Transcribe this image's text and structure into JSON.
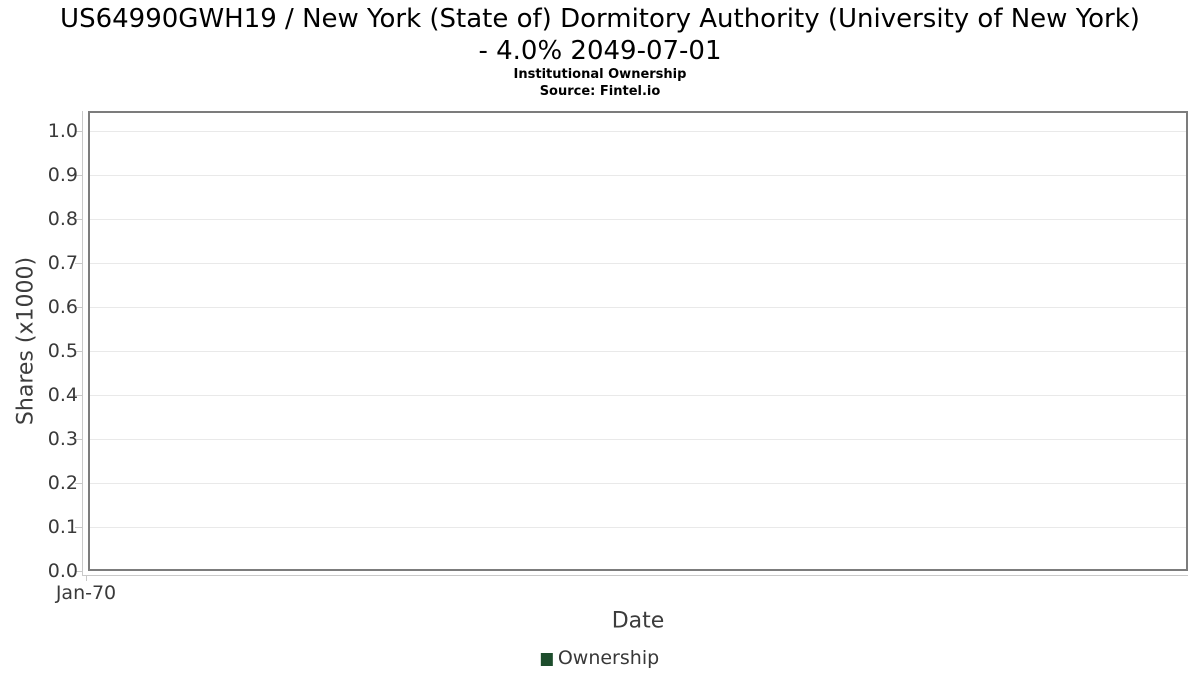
{
  "page": {
    "background": "#ffffff"
  },
  "chart": {
    "title_line1": "US64990GWH19 / New York (State of) Dormitory Authority (University of New York)",
    "title_line2": "- 4.0% 2049-07-01",
    "subtitle": "Institutional Ownership",
    "source": "Source: Fintel.io",
    "y_axis_title": "Shares (x1000)",
    "x_axis_title": "Date",
    "legend": {
      "label": "Ownership",
      "swatch_color": "#1d4d2c"
    },
    "colors": {
      "title_text": "#000000",
      "axis_text": "#3a3a3a",
      "grid_line": "#e9e9e9",
      "plot_border": "#7c7c7c",
      "axis_line": "#c9c9c9"
    }
  },
  "chart_data": {
    "type": "bar",
    "title": "US64990GWH19 / New York (State of) Dormitory Authority (University of New York) - 4.0% 2049-07-01",
    "subtitle": "Institutional Ownership",
    "source": "Source: Fintel.io",
    "xlabel": "Date",
    "ylabel": "Shares (x1000)",
    "categories": [
      "Jan-70"
    ],
    "series": [
      {
        "name": "Ownership",
        "color": "#1d4d2c",
        "values": []
      }
    ],
    "ylim": [
      0.0,
      1.045
    ],
    "y_tick_labels": [
      "1.0",
      "0.9",
      "0.8",
      "0.7",
      "0.6",
      "0.5",
      "0.4",
      "0.3",
      "0.2",
      "0.1",
      "0.0"
    ],
    "x_tick_labels": [
      "Jan-70"
    ],
    "grid": "horizontal-major",
    "legend_position": "bottom-center",
    "plot_empty": true
  }
}
